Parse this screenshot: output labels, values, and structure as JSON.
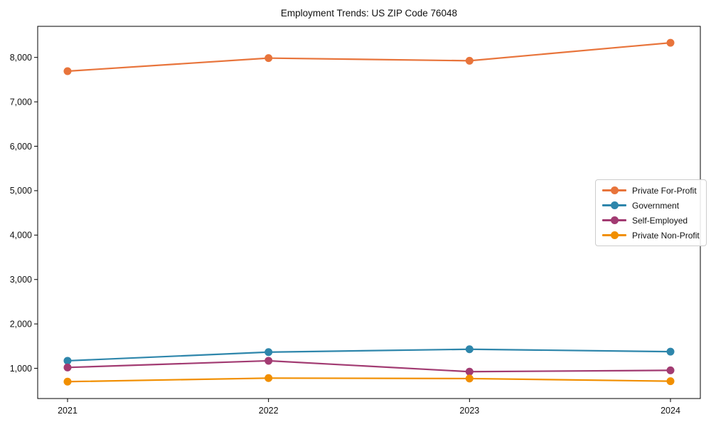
{
  "chart_data": {
    "type": "line",
    "title": "Employment Trends: US ZIP Code 76048",
    "xlabel": "",
    "ylabel": "",
    "x": [
      "2021",
      "2022",
      "2023",
      "2024"
    ],
    "series": [
      {
        "name": "Private For-Profit",
        "color": "#E8743B",
        "values": [
          7690,
          7985,
          7925,
          8330
        ]
      },
      {
        "name": "Government",
        "color": "#2E86AB",
        "values": [
          1170,
          1365,
          1430,
          1375
        ]
      },
      {
        "name": "Self-Employed",
        "color": "#A23B72",
        "values": [
          1020,
          1170,
          925,
          955
        ]
      },
      {
        "name": "Private Non-Profit",
        "color": "#F18F01",
        "values": [
          700,
          780,
          770,
          710
        ]
      }
    ],
    "ylim": [
      320,
      8700
    ],
    "yticks": [
      1000,
      2000,
      3000,
      4000,
      5000,
      6000,
      7000,
      8000
    ],
    "grid": false,
    "marker": "o",
    "legend_position": "center-right",
    "frame_color": "#000000",
    "background_color": "#ffffff"
  }
}
